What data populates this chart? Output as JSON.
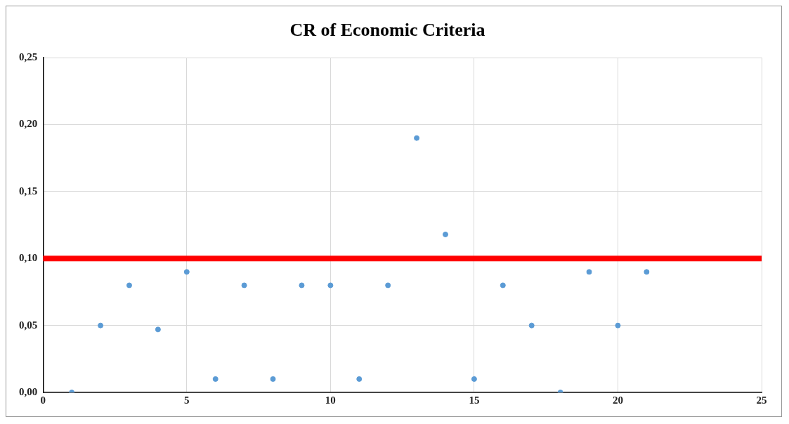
{
  "chart_data": {
    "type": "scatter",
    "title": "CR of Economic Criteria",
    "x": [
      1,
      2,
      3,
      4,
      5,
      6,
      7,
      8,
      9,
      10,
      11,
      12,
      13,
      14,
      15,
      16,
      17,
      18,
      19,
      20,
      21
    ],
    "values": [
      0.0,
      0.05,
      0.08,
      0.047,
      0.09,
      0.01,
      0.08,
      0.01,
      0.08,
      0.08,
      0.01,
      0.08,
      0.19,
      0.118,
      0.01,
      0.08,
      0.05,
      0.0,
      0.09,
      0.05,
      0.09
    ],
    "color": "#5b9bd5",
    "marker": "circle",
    "xlim": [
      0,
      25
    ],
    "xticks": [
      0,
      5,
      10,
      15,
      20,
      25
    ],
    "ylim": [
      0,
      0.25
    ],
    "yticks": [
      {
        "value": 0,
        "label": "0,00"
      },
      {
        "value": 0.05,
        "label": "0,05"
      },
      {
        "value": 0.1,
        "label": "0,10"
      },
      {
        "value": 0.15,
        "label": "0,15"
      },
      {
        "value": 0.2,
        "label": "0,20"
      },
      {
        "value": 0.25,
        "label": "0,25"
      }
    ],
    "ref_lines": [
      {
        "axis": "y",
        "value": 0.1,
        "color": "#ff0000"
      }
    ],
    "grid": true,
    "legend": false
  }
}
